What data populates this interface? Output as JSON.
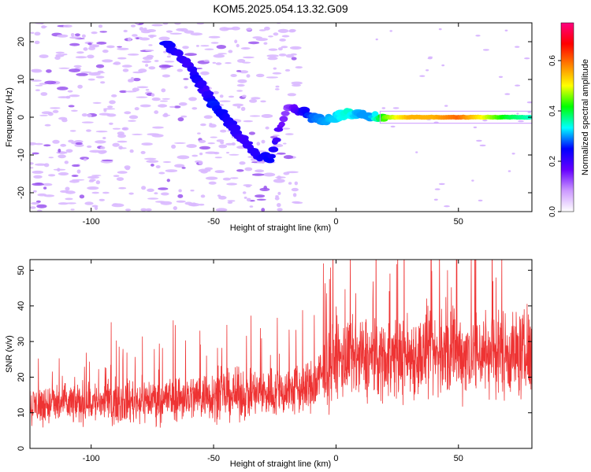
{
  "title": "KOM5.2025.054.13.32.G09",
  "chart_data": [
    {
      "type": "heatmap",
      "xlabel": "Height of straight line (km)",
      "ylabel": "Frequency (Hz)",
      "xlim": [
        -125,
        80
      ],
      "ylim": [
        -25,
        25
      ],
      "xticks": [
        -100,
        -50,
        0,
        50
      ],
      "yticks": [
        -20,
        -10,
        0,
        10,
        20
      ],
      "grid": false,
      "colorbar": {
        "label": "Normalized spectral amplitude",
        "range": [
          0,
          0.75
        ],
        "ticks": [
          "0.0",
          "0.2",
          "0.4",
          "0.6"
        ],
        "colors": [
          "#ffffff",
          "#cc99ff",
          "#6600ff",
          "#0000ff",
          "#00ffff",
          "#00ff00",
          "#ffff00",
          "#ff8000",
          "#ff0000",
          "#ff0080"
        ]
      },
      "ridge": [
        {
          "x": -70,
          "y": 20,
          "v": 0.25
        },
        {
          "x": -65,
          "y": 17,
          "v": 0.22
        },
        {
          "x": -60,
          "y": 14,
          "v": 0.2
        },
        {
          "x": -57,
          "y": 10,
          "v": 0.24
        },
        {
          "x": -53,
          "y": 7,
          "v": 0.2
        },
        {
          "x": -50,
          "y": 3,
          "v": 0.26
        },
        {
          "x": -45,
          "y": 0,
          "v": 0.24
        },
        {
          "x": -42,
          "y": -3,
          "v": 0.22
        },
        {
          "x": -38,
          "y": -6,
          "v": 0.2
        },
        {
          "x": -33,
          "y": -10,
          "v": 0.22
        },
        {
          "x": -27,
          "y": -11,
          "v": 0.25
        },
        {
          "x": -20,
          "y": 3,
          "v": 0.12
        },
        {
          "x": -15,
          "y": 2,
          "v": 0.2
        },
        {
          "x": -10,
          "y": 0,
          "v": 0.28
        },
        {
          "x": -5,
          "y": -1,
          "v": 0.3
        },
        {
          "x": 0,
          "y": 0,
          "v": 0.32
        },
        {
          "x": 5,
          "y": 1,
          "v": 0.35
        },
        {
          "x": 10,
          "y": 1,
          "v": 0.3
        },
        {
          "x": 15,
          "y": 0,
          "v": 0.3
        },
        {
          "x": 20,
          "y": 0,
          "v": 0.45
        },
        {
          "x": 30,
          "y": 0,
          "v": 0.55
        },
        {
          "x": 40,
          "y": 0,
          "v": 0.55
        },
        {
          "x": 50,
          "y": 0,
          "v": 0.6
        },
        {
          "x": 60,
          "y": 0,
          "v": 0.5
        },
        {
          "x": 70,
          "y": 0,
          "v": 0.4
        },
        {
          "x": 80,
          "y": 0,
          "v": 0.35
        }
      ]
    },
    {
      "type": "line",
      "xlabel": "Height of straight line (km)",
      "ylabel": "SNR (v/v)",
      "xlim": [
        -125,
        80
      ],
      "ylim": [
        0,
        53
      ],
      "xticks": [
        -100,
        -50,
        0,
        50
      ],
      "yticks": [
        0,
        10,
        20,
        30,
        40,
        50
      ],
      "grid": false,
      "color": "#ee3333",
      "x": [
        -125,
        -110,
        -100,
        -90,
        -80,
        -70,
        -60,
        -50,
        -40,
        -30,
        -20,
        -10,
        0,
        10,
        20,
        30,
        40,
        50,
        60,
        70,
        80
      ],
      "mean": [
        12,
        12.5,
        13,
        13,
        13.5,
        14,
        14.5,
        15,
        15,
        15.5,
        16,
        17,
        25,
        25,
        25.5,
        26,
        26,
        26.5,
        27,
        27,
        26
      ]
    }
  ]
}
